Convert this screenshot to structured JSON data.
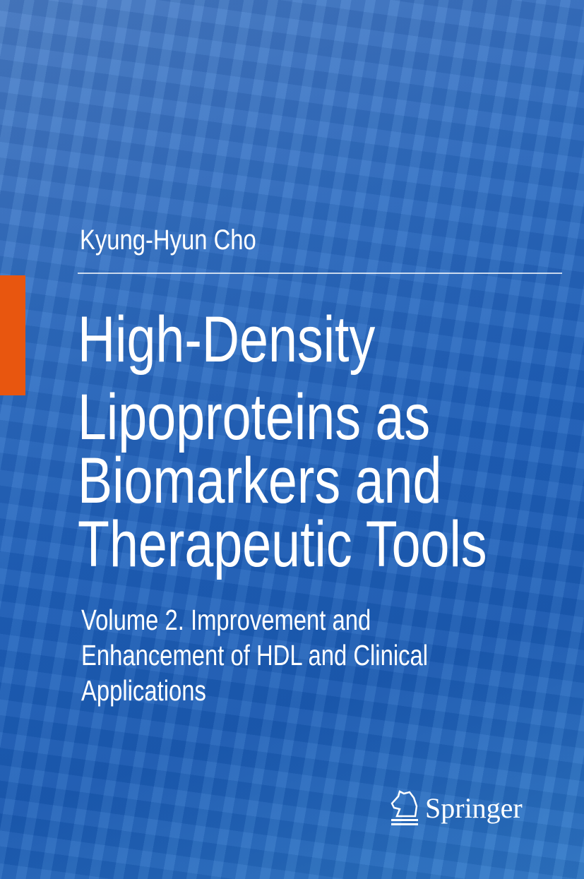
{
  "author": "Kyung-Hyun Cho",
  "title_lines": [
    "High-Density",
    "Lipoproteins as",
    "Biomarkers and",
    "Therapeutic Tools"
  ],
  "subtitle_lines": [
    "Volume 2. Improvement and",
    "Enhancement of HDL and Clinical",
    "Applications"
  ],
  "publisher": "Springer",
  "colors": {
    "accent_bar": "#e8560f",
    "background": "#2566be",
    "text": "#ffffff"
  }
}
